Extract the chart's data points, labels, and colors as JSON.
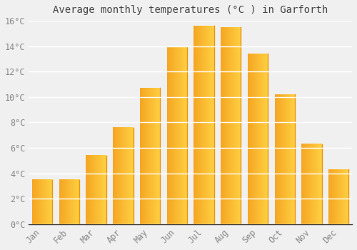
{
  "title": "Average monthly temperatures (°C ) in Garforth",
  "months": [
    "Jan",
    "Feb",
    "Mar",
    "Apr",
    "May",
    "Jun",
    "Jul",
    "Aug",
    "Sep",
    "Oct",
    "Nov",
    "Dec"
  ],
  "temperatures": [
    3.5,
    3.5,
    5.4,
    7.6,
    10.7,
    13.9,
    15.6,
    15.5,
    13.4,
    10.2,
    6.3,
    4.3
  ],
  "bar_color_left": "#F5A623",
  "bar_color_right": "#FFD042",
  "bar_edge_color": "#E8940A",
  "ylim": [
    0,
    16
  ],
  "yticks": [
    0,
    2,
    4,
    6,
    8,
    10,
    12,
    14,
    16
  ],
  "ytick_labels": [
    "0°C",
    "2°C",
    "4°C",
    "6°C",
    "8°C",
    "10°C",
    "12°C",
    "14°C",
    "16°C"
  ],
  "background_color": "#f0f0f0",
  "grid_color": "#ffffff",
  "title_fontsize": 10,
  "tick_fontsize": 8.5,
  "bar_width": 0.75,
  "tick_color": "#888888"
}
